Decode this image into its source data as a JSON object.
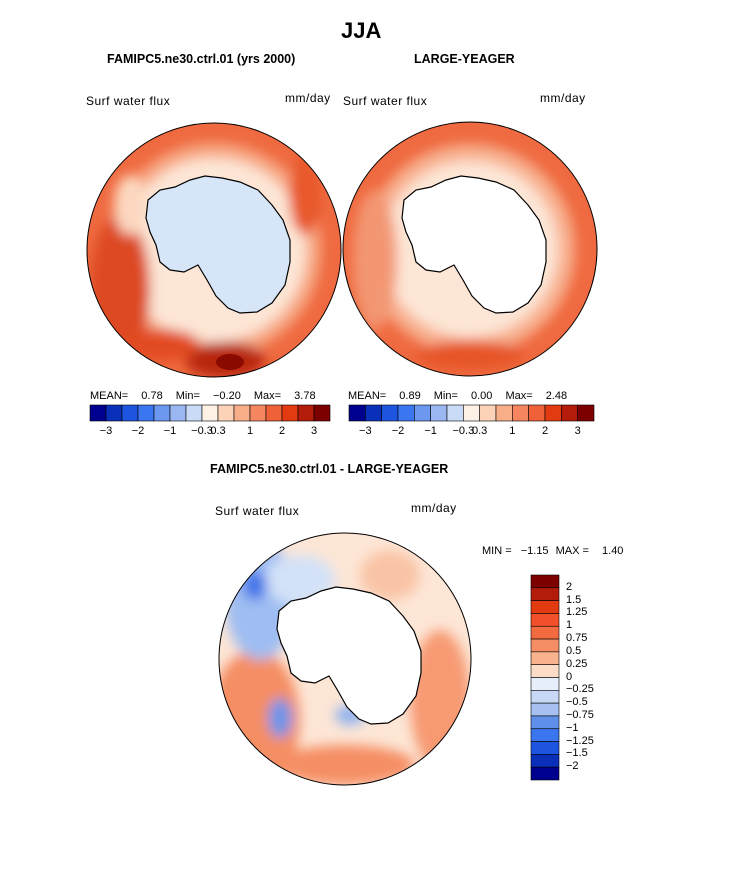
{
  "page": {
    "title": "JJA"
  },
  "panels": [
    {
      "id": "control",
      "title": "FAMIPC5.ne30.ctrl.01 (yrs 2000)",
      "variable": "Surf water flux",
      "units": "mm/day",
      "stats": {
        "mean_label": "MEAN=",
        "mean": "0.78",
        "min_label": "Min=",
        "min": "−0.20",
        "max_label": "Max=",
        "max": "3.78"
      }
    },
    {
      "id": "test",
      "title": "LARGE-YEAGER",
      "variable": "Surf water flux",
      "units": "mm/day",
      "stats": {
        "mean_label": "MEAN=",
        "mean": "0.89",
        "min_label": "Min=",
        "min": "0.00",
        "max_label": "Max=",
        "max": "2.48"
      }
    },
    {
      "id": "diff",
      "title": "FAMIPC5.ne30.ctrl.01 - LARGE-YEAGER",
      "variable": "Surf water flux",
      "units": "mm/day",
      "stats": {
        "min_label": "MIN =",
        "min": "−1.15",
        "max_label": "MAX =",
        "max": "1.40"
      }
    }
  ],
  "colorbar_main": {
    "colors": [
      "#00008f",
      "#0a2fb8",
      "#1d55e0",
      "#3a76ef",
      "#6c98ef",
      "#9ab7f2",
      "#c9dbf6",
      "#fdf1e6",
      "#fcd3b9",
      "#f9ae8a",
      "#f5865f",
      "#ef6138",
      "#e23b12",
      "#b31b0a",
      "#7d0000"
    ],
    "tick_labels": [
      "−3",
      "−2",
      "−1",
      "−0.3",
      "0.3",
      "1",
      "2",
      "3"
    ]
  },
  "colorbar_diff": {
    "colors": [
      "#7d0000",
      "#b31b0a",
      "#e23b12",
      "#f2502a",
      "#f26a3f",
      "#f58e64",
      "#f9b28e",
      "#fcdcc6",
      "#e5eefa",
      "#c6d8f5",
      "#a6c1f1",
      "#5f8fe8",
      "#3a76ef",
      "#1d55e0",
      "#0a2fb8",
      "#00008f"
    ],
    "tick_labels": [
      "2",
      "1.5",
      "1.25",
      "1",
      "0.75",
      "0.5",
      "0.25",
      "0",
      "−0.25",
      "−0.5",
      "−0.75",
      "−1",
      "−1.25",
      "−1.5",
      "−2"
    ]
  },
  "chart_data": [
    {
      "type": "heatmap",
      "projection": "south polar stereographic",
      "title": "FAMIPC5.ne30.ctrl.01 (yrs 2000)",
      "subtitle": "JJA",
      "variable": "Surf water flux",
      "units": "mm/day",
      "mean": 0.78,
      "min": -0.2,
      "max": 3.78,
      "contour_levels": [
        -3,
        -2.5,
        -2,
        -1.5,
        -1,
        -0.6,
        -0.3,
        0.3,
        0.6,
        1,
        1.5,
        2,
        2.5,
        3
      ]
    },
    {
      "type": "heatmap",
      "projection": "south polar stereographic",
      "title": "LARGE-YEAGER",
      "subtitle": "JJA",
      "variable": "Surf water flux",
      "units": "mm/day",
      "mean": 0.89,
      "min": 0.0,
      "max": 2.48,
      "contour_levels": [
        -3,
        -2.5,
        -2,
        -1.5,
        -1,
        -0.6,
        -0.3,
        0.3,
        0.6,
        1,
        1.5,
        2,
        2.5,
        3
      ]
    },
    {
      "type": "heatmap",
      "projection": "south polar stereographic",
      "title": "FAMIPC5.ne30.ctrl.01 - LARGE-YEAGER",
      "subtitle": "JJA",
      "variable": "Surf water flux",
      "units": "mm/day",
      "min": -1.15,
      "max": 1.4,
      "contour_levels": [
        -2,
        -1.5,
        -1.25,
        -1,
        -0.75,
        -0.5,
        -0.25,
        0,
        0.25,
        0.5,
        0.75,
        1,
        1.25,
        1.5,
        2
      ]
    }
  ]
}
